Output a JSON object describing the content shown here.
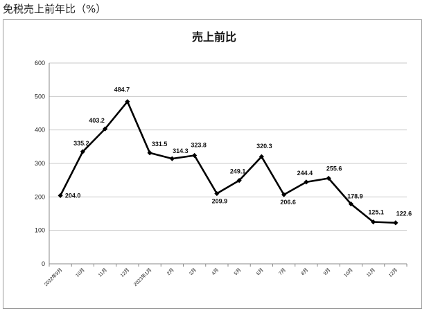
{
  "page": {
    "heading": "免税売上前年比（%）"
  },
  "chart_data": {
    "type": "line",
    "title": "売上前比",
    "xlabel": "",
    "ylabel": "",
    "categories": [
      "2022年9月",
      "10月",
      "11月",
      "12月",
      "2023年1月",
      "2月",
      "3月",
      "4月",
      "5月",
      "6月",
      "7月",
      "8月",
      "9月",
      "10月",
      "11月",
      "12月"
    ],
    "series": [
      {
        "values": [
          204.0,
          335.2,
          403.2,
          484.7,
          331.5,
          314.3,
          323.8,
          209.9,
          249.1,
          320.3,
          206.6,
          244.4,
          255.6,
          178.9,
          125.1,
          122.6
        ],
        "labels": [
          "204.0",
          "335.2",
          "403.2",
          "484.7",
          "331.5",
          "314.3",
          "323.8",
          "209.9",
          "249.1",
          "320.3",
          "206.6",
          "244.4",
          "255.6",
          "178.9",
          "125.1",
          "122.6"
        ],
        "color": "#000000"
      }
    ],
    "ylim": [
      0,
      600
    ],
    "yticks": [
      "0",
      "100",
      "200",
      "300",
      "400",
      "500",
      "600"
    ],
    "grid": true,
    "legend": "none"
  }
}
